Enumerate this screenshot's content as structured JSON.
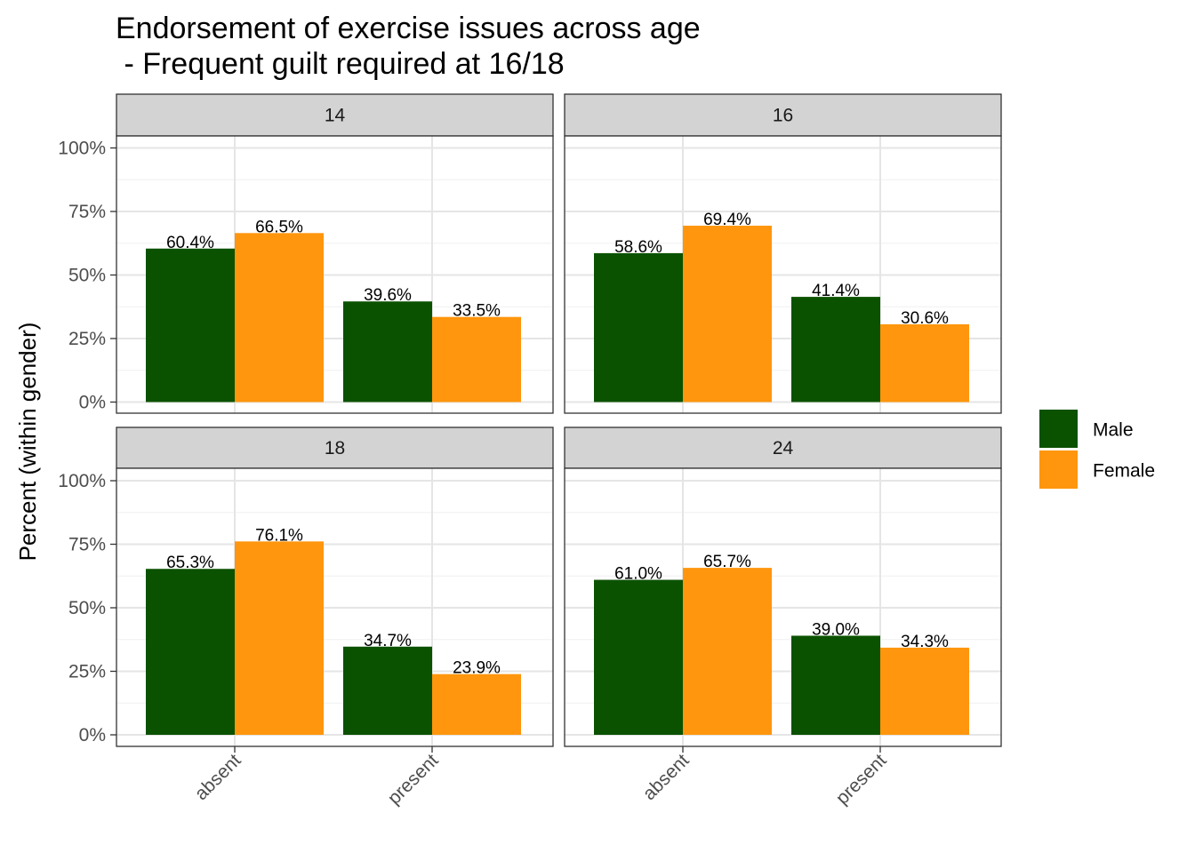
{
  "chart_data": {
    "type": "bar",
    "title_lines": [
      "Endorsement of exercise issues across age",
      " - Frequent guilt required at 16/18"
    ],
    "xlabel": "",
    "ylabel": "Percent (within gender)",
    "ylim": [
      0,
      1
    ],
    "yticks": [
      "0%",
      "25%",
      "50%",
      "75%",
      "100%"
    ],
    "categories": [
      "absent",
      "present"
    ],
    "legend": {
      "position": "right",
      "entries": [
        {
          "name": "Male",
          "color": "#0b5200"
        },
        {
          "name": "Female",
          "color": "#ff960d"
        }
      ]
    },
    "grid": true,
    "facets": [
      {
        "label": "14",
        "series": [
          {
            "name": "Male",
            "values": [
              0.604,
              0.396
            ],
            "labels": [
              "60.4%",
              "39.6%"
            ]
          },
          {
            "name": "Female",
            "values": [
              0.665,
              0.335
            ],
            "labels": [
              "66.5%",
              "33.5%"
            ]
          }
        ]
      },
      {
        "label": "16",
        "series": [
          {
            "name": "Male",
            "values": [
              0.586,
              0.414
            ],
            "labels": [
              "58.6%",
              "41.4%"
            ]
          },
          {
            "name": "Female",
            "values": [
              0.694,
              0.306
            ],
            "labels": [
              "69.4%",
              "30.6%"
            ]
          }
        ]
      },
      {
        "label": "18",
        "series": [
          {
            "name": "Male",
            "values": [
              0.653,
              0.347
            ],
            "labels": [
              "65.3%",
              "34.7%"
            ]
          },
          {
            "name": "Female",
            "values": [
              0.761,
              0.239
            ],
            "labels": [
              "76.1%",
              "23.9%"
            ]
          }
        ]
      },
      {
        "label": "24",
        "series": [
          {
            "name": "Male",
            "values": [
              0.61,
              0.39
            ],
            "labels": [
              "61.0%",
              "39.0%"
            ]
          },
          {
            "name": "Female",
            "values": [
              0.657,
              0.343
            ],
            "labels": [
              "65.7%",
              "34.3%"
            ]
          }
        ]
      }
    ]
  }
}
